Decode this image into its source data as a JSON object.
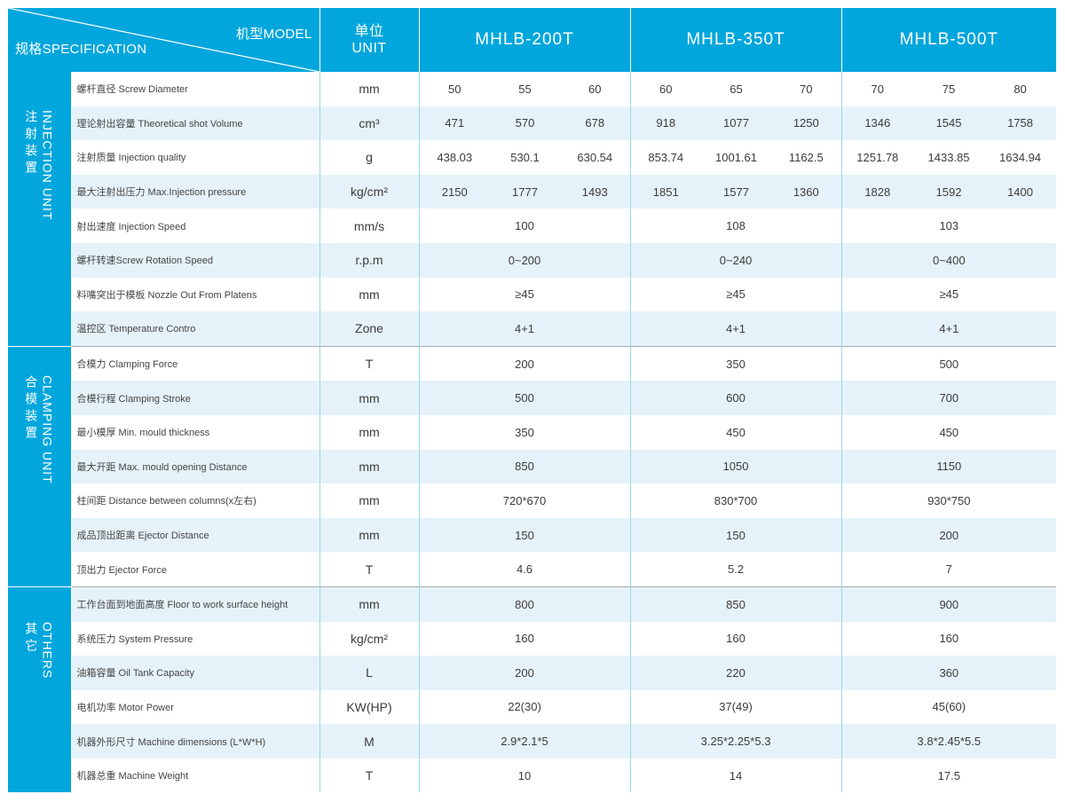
{
  "header": {
    "model_label": "机型MODEL",
    "spec_label": "规格SPECIFICATION",
    "unit_cn": "单位",
    "unit_en": "UNIT",
    "models": [
      "MHLB-200T",
      "MHLB-350T",
      "MHLB-500T"
    ]
  },
  "groups": [
    {
      "cn": "注射装置",
      "en": "INJECTION UNIT",
      "rows": [
        {
          "param": "螺杆直径 Screw Diameter",
          "unit": "mm",
          "values": [
            "50",
            "55",
            "60",
            "60",
            "65",
            "70",
            "70",
            "75",
            "80"
          ]
        },
        {
          "param": "理论射出容量 Theoretical shot Volume",
          "unit": "cm³",
          "values": [
            "471",
            "570",
            "678",
            "918",
            "1077",
            "1250",
            "1346",
            "1545",
            "1758"
          ]
        },
        {
          "param": "注射质量 Injection quality",
          "unit": "g",
          "values": [
            "438.03",
            "530.1",
            "630.54",
            "853.74",
            "1001.61",
            "1162.5",
            "1251.78",
            "1433.85",
            "1634.94"
          ]
        },
        {
          "param": "最大注射出压力 Max.Injection pressure",
          "unit": "kg/cm²",
          "values": [
            "2150",
            "1777",
            "1493",
            "1851",
            "1577",
            "1360",
            "1828",
            "1592",
            "1400"
          ]
        },
        {
          "param": "射出速度 Injection Speed",
          "unit": "mm/s",
          "merged": [
            "100",
            "108",
            "103"
          ]
        },
        {
          "param": "螺杆转速Screw Rotation Speed",
          "unit": "r.p.m",
          "merged": [
            "0~200",
            "0~240",
            "0~400"
          ]
        },
        {
          "param": "料嘴突出于模板 Nozzle Out From Platens",
          "unit": "mm",
          "merged": [
            "≥45",
            "≥45",
            "≥45"
          ]
        },
        {
          "param": "温控区 Temperature Contro",
          "unit": "Zone",
          "merged": [
            "4+1",
            "4+1",
            "4+1"
          ]
        }
      ]
    },
    {
      "cn": "合模装置",
      "en": "CLAMPING UNIT",
      "rows": [
        {
          "param": "合模力 Clamping Force",
          "unit": "T",
          "merged": [
            "200",
            "350",
            "500"
          ]
        },
        {
          "param": "合模行程 Clamping Stroke",
          "unit": "mm",
          "merged": [
            "500",
            "600",
            "700"
          ]
        },
        {
          "param": "最小模厚 Min. mould thickness",
          "unit": "mm",
          "merged": [
            "350",
            "450",
            "450"
          ]
        },
        {
          "param": "最大开距 Max. mould opening Distance",
          "unit": "mm",
          "merged": [
            "850",
            "1050",
            "1150"
          ]
        },
        {
          "param": "柱间距 Distance between columns(x左右)",
          "unit": "mm",
          "merged": [
            "720*670",
            "830*700",
            "930*750"
          ]
        },
        {
          "param": "成品顶出距离 Ejector Distance",
          "unit": "mm",
          "merged": [
            "150",
            "150",
            "200"
          ]
        },
        {
          "param": "顶出力 Ejector Force",
          "unit": "T",
          "merged": [
            "4.6",
            "5.2",
            "7"
          ]
        }
      ]
    },
    {
      "cn": "其它",
      "en": "OTHERS",
      "rows": [
        {
          "param": "工作台面到地面高度 Floor to work surface height",
          "unit": "mm",
          "merged": [
            "800",
            "850",
            "900"
          ]
        },
        {
          "param": "系统压力 System Pressure",
          "unit": "kg/cm²",
          "merged": [
            "160",
            "160",
            "160"
          ]
        },
        {
          "param": "油箱容量 Oil Tank Capacity",
          "unit": "L",
          "merged": [
            "200",
            "220",
            "360"
          ]
        },
        {
          "param": "电机功率 Motor Power",
          "unit": "KW(HP)",
          "merged": [
            "22(30)",
            "37(49)",
            "45(60)"
          ]
        },
        {
          "param": "机器外形尺寸 Machine dimensions (L*W*H)",
          "unit": "M",
          "merged": [
            "2.9*2.1*5",
            "3.25*2.25*5.3",
            "3.8*2.45*5.5"
          ]
        },
        {
          "param": "机器总重 Machine Weight",
          "unit": "T",
          "merged": [
            "10",
            "14",
            "17.5"
          ]
        }
      ]
    }
  ]
}
